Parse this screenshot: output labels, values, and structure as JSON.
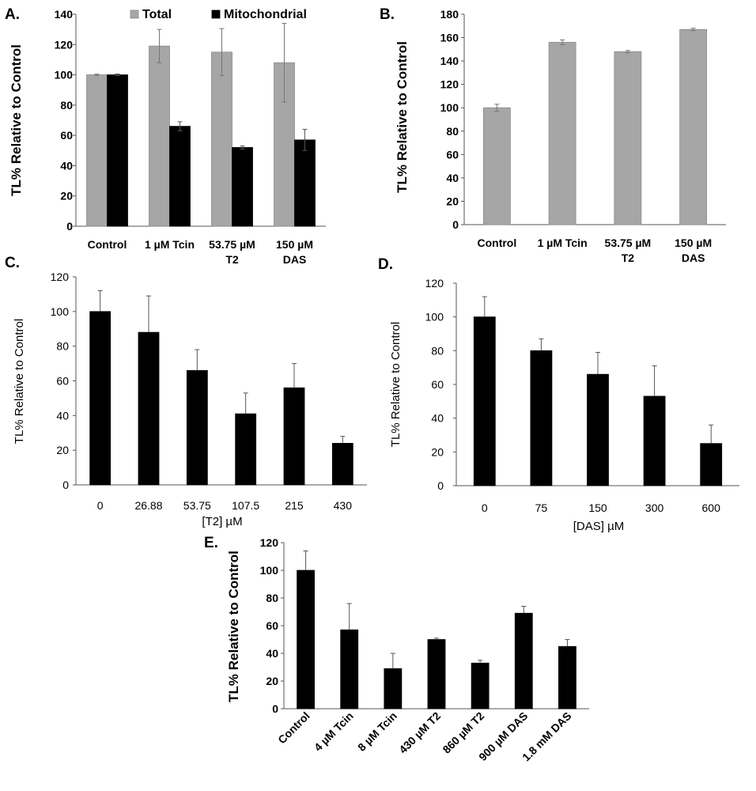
{
  "chart_data": [
    {
      "panel_label": "A.",
      "type": "bar",
      "ylabel": "TL% Relative to Control",
      "xlabel": "",
      "ylim": [
        0,
        140
      ],
      "y_ticks": [
        0,
        20,
        40,
        60,
        80,
        100,
        120,
        140
      ],
      "categories": [
        "Control",
        "1 µM Tcin",
        "53.75 µM|T2",
        "150 µM|DAS"
      ],
      "legend_position": "top",
      "series": [
        {
          "name": "Total",
          "color": "#a6a6a6",
          "values": [
            100,
            119,
            115,
            108
          ],
          "errors": [
            0.5,
            11,
            15.5,
            26
          ]
        },
        {
          "name": "Mitochondrial",
          "color": "#000000",
          "values": [
            100,
            66,
            52,
            57
          ],
          "errors": [
            0.5,
            3,
            1,
            7
          ]
        }
      ]
    },
    {
      "panel_label": "B.",
      "type": "bar",
      "ylabel": "TL% Relative to Control",
      "xlabel": "",
      "ylim": [
        0,
        180
      ],
      "y_ticks": [
        0,
        20,
        40,
        60,
        80,
        100,
        120,
        140,
        160,
        180
      ],
      "categories": [
        "Control",
        "1 µM Tcin",
        "53.75 µM|T2",
        "150 µM|DAS"
      ],
      "series": [
        {
          "name": "",
          "color": "#a6a6a6",
          "values": [
            100,
            156,
            148,
            167
          ],
          "errors": [
            3,
            2,
            1,
            1
          ]
        }
      ]
    },
    {
      "panel_label": "C.",
      "type": "bar",
      "ylabel": "TL% Relative to Control",
      "xlabel": "[T2] µM",
      "ylim": [
        0,
        120
      ],
      "y_ticks": [
        0,
        20,
        40,
        60,
        80,
        100,
        120
      ],
      "categories": [
        "0",
        "26.88",
        "53.75",
        "107.5",
        "215",
        "430"
      ],
      "series": [
        {
          "name": "",
          "color": "#000000",
          "values": [
            100,
            88,
            66,
            41,
            56,
            24
          ],
          "errors": [
            12,
            21,
            12,
            12,
            14,
            4
          ]
        }
      ]
    },
    {
      "panel_label": "D.",
      "type": "bar",
      "ylabel": "TL% Relative to Control",
      "xlabel": "[DAS] µM",
      "ylim": [
        0,
        120
      ],
      "y_ticks": [
        0,
        20,
        40,
        60,
        80,
        100,
        120
      ],
      "categories": [
        "0",
        "75",
        "150",
        "300",
        "600"
      ],
      "series": [
        {
          "name": "",
          "color": "#000000",
          "values": [
            100,
            80,
            66,
            53,
            25
          ],
          "errors": [
            12,
            7,
            13,
            18,
            11
          ]
        }
      ]
    },
    {
      "panel_label": "E.",
      "type": "bar",
      "ylabel": "TL% Relative to Control",
      "xlabel": "",
      "ylim": [
        0,
        120
      ],
      "y_ticks": [
        0,
        20,
        40,
        60,
        80,
        100,
        120
      ],
      "categories": [
        "Control",
        "4 µM  Tcin",
        "8 µM  Tcin",
        "430 µM  T2",
        "860 µM  T2",
        "900  µM  DAS",
        "1.8 mM DAS"
      ],
      "series": [
        {
          "name": "",
          "color": "#000000",
          "values": [
            100,
            57,
            29,
            50,
            33,
            69,
            45
          ],
          "errors": [
            14,
            19,
            11,
            1,
            2,
            5,
            5
          ]
        }
      ]
    }
  ]
}
